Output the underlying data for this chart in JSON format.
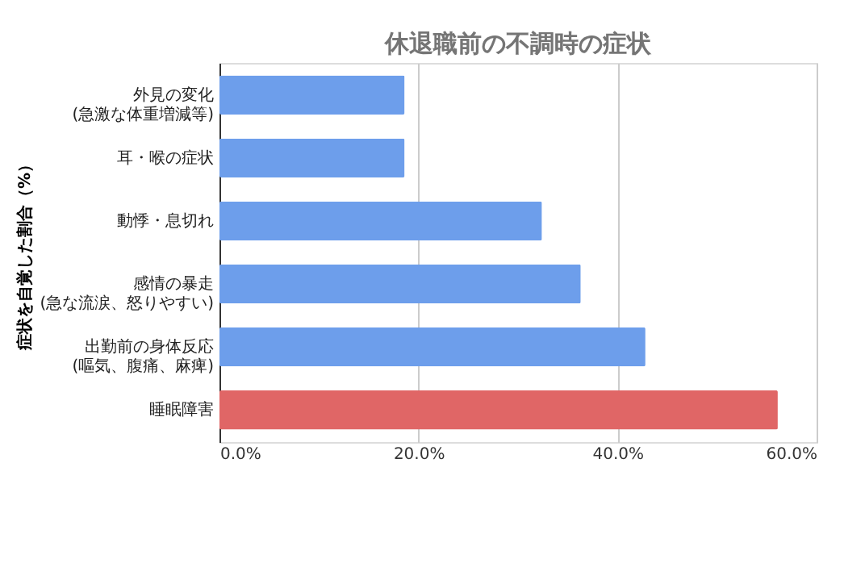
{
  "chart_data": {
    "type": "bar",
    "orientation": "horizontal",
    "title": "休退職前の不調時の症状",
    "ylabel": "症状を自覚した割合（%）",
    "categories": [
      "外見の変化\n(急激な体重増減等)",
      "耳・喉の症状",
      "動悸・息切れ",
      "感情の暴走\n(急な流涙、怒りやすい)",
      "出勤前の身体反応\n(嘔気、腹痛、麻痺)",
      "睡眠障害"
    ],
    "values": [
      18.6,
      18.6,
      32.4,
      36.3,
      42.8,
      56.1
    ],
    "colors": [
      "#6d9eeb",
      "#6d9eeb",
      "#6d9eeb",
      "#6d9eeb",
      "#6d9eeb",
      "#e06666"
    ],
    "xlim": [
      0,
      60
    ],
    "xticks": [
      {
        "value": 0,
        "label": "0.0%"
      },
      {
        "value": 20,
        "label": "20.0%"
      },
      {
        "value": 40,
        "label": "40.0%"
      },
      {
        "value": 60,
        "label": "60.0%"
      }
    ],
    "grid": "x"
  }
}
